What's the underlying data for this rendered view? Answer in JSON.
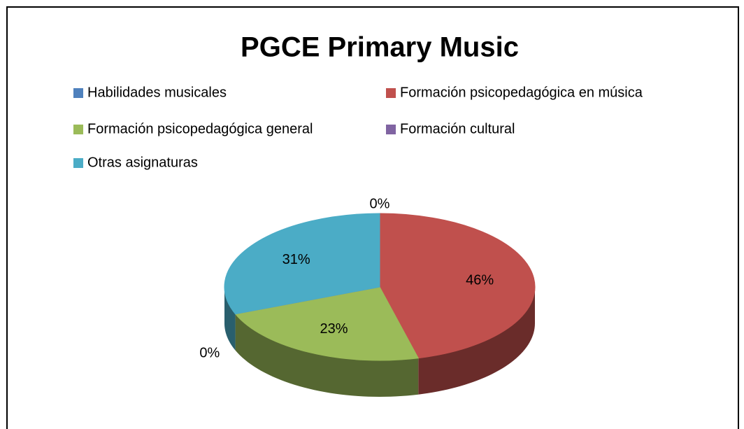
{
  "chart_data": {
    "type": "pie3d",
    "title": "PGCE Primary Music",
    "categories": [
      "Habilidades musicales",
      "Formación psicopedagógica en música",
      "Formación psicopedagógica general",
      "Formación cultural",
      "Otras asignaturas"
    ],
    "values": [
      0,
      46,
      23,
      0,
      31
    ],
    "value_labels": [
      "0%",
      "46%",
      "23%",
      "0%",
      "31%"
    ],
    "colors": [
      "#4f81bd",
      "#c0504d",
      "#9bbb59",
      "#8064a2",
      "#4bacc6"
    ],
    "legend": "top"
  }
}
